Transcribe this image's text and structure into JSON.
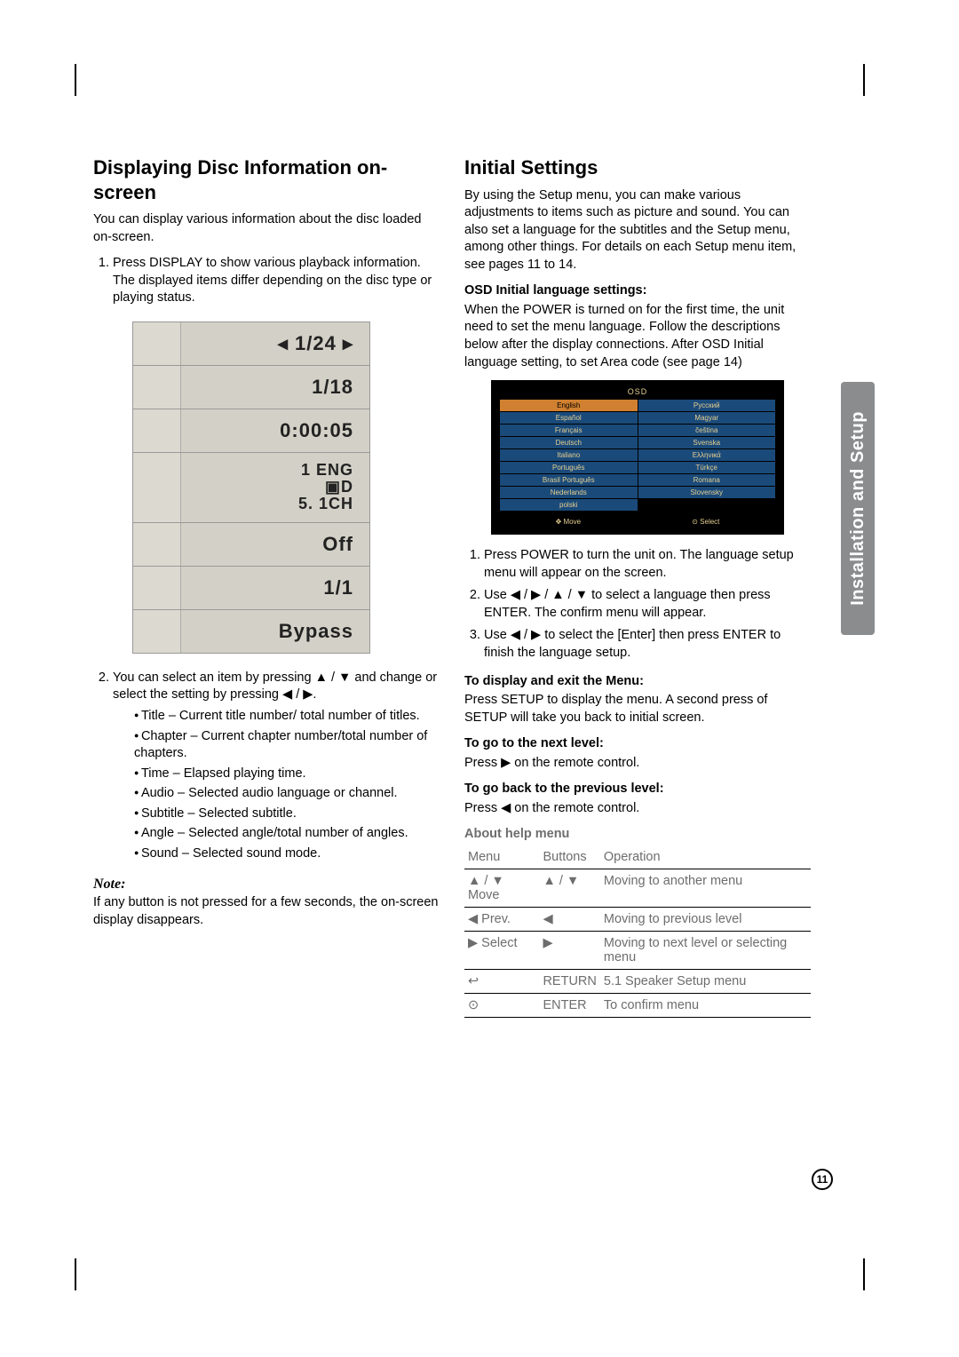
{
  "sideTab": "Installation and Setup",
  "pageNum": "11",
  "left": {
    "title": "Displaying Disc Information on-screen",
    "intro": "You can display various information about the disc loaded on-screen.",
    "step1a": "Press DISPLAY to show various playback information.",
    "step1b": "The displayed items differ depending on the disc type or playing status.",
    "osd": [
      {
        "icon": "◁ 🎬 ▷",
        "val": "◂   1/24 ▸"
      },
      {
        "icon": "▦",
        "val": "1/18"
      },
      {
        "icon": "🕐",
        "val": "0:00:05"
      },
      {
        "icon": "🎧",
        "val": "1 ENG\n▣D\n5. 1CH"
      },
      {
        "icon": "▭",
        "val": "Off"
      },
      {
        "icon": "📷",
        "val": "1/1"
      },
      {
        "icon": "◯",
        "val": "Bypass"
      }
    ],
    "step2": "You can select an item by pressing ▲ / ▼ and change or select the setting by pressing ◀ / ▶.",
    "bullets": [
      "Title – Current title number/ total number of titles.",
      "Chapter – Current chapter number/total number of chapters.",
      "Time – Elapsed playing time.",
      "Audio – Selected audio language or channel.",
      "Subtitle – Selected subtitle.",
      "Angle – Selected angle/total number of angles.",
      "Sound – Selected sound mode."
    ],
    "noteH": "Note:",
    "note": "If any button is not pressed for a few seconds, the on-screen display disappears."
  },
  "right": {
    "title": "Initial Settings",
    "intro": "By using the Setup menu, you can make various adjustments to items such as picture and sound. You can also set a language for the subtitles and the Setup menu, among other things. For details on each Setup menu item, see pages 11 to 14.",
    "osdH": "OSD Initial language settings:",
    "osdP": "When the POWER is turned on for the first time, the unit need to set the menu language. Follow the descriptions below after the display connections. After OSD Initial language setting, to set Area code (see page 14)",
    "langTitle": "OSD",
    "langs": [
      [
        "English",
        "Русский"
      ],
      [
        "Español",
        "Magyar"
      ],
      [
        "Français",
        "čeština"
      ],
      [
        "Deutsch",
        "Svenska"
      ],
      [
        "Italiano",
        "Ελληνικά"
      ],
      [
        "Português",
        "Türkçe"
      ],
      [
        "Brasil Português",
        "Romana"
      ],
      [
        "Nederlands",
        "Slovensky"
      ],
      [
        "polski",
        ""
      ]
    ],
    "langFoot1": "✥ Move",
    "langFoot2": "⊙ Select",
    "steps": [
      "Press POWER to turn the unit on. The language setup menu will appear on the screen.",
      "Use ◀ / ▶ / ▲ / ▼ to select a language then press ENTER. The confirm menu will appear.",
      "Use ◀ / ▶ to select the [Enter] then press ENTER to finish the language setup."
    ],
    "dispH": "To display and exit the Menu:",
    "dispP": "Press SETUP to display the menu. A second press of SETUP will take you back to initial screen.",
    "nextH": "To go to the next level:",
    "nextP": "Press ▶ on the remote control.",
    "prevH": "To go back to the previous level:",
    "prevP": "Press ◀ on the remote control.",
    "helpH": "About help menu",
    "tbl": {
      "h": [
        "Menu",
        "Buttons",
        "Operation"
      ],
      "r": [
        [
          "▲ / ▼ Move",
          "▲ / ▼",
          "Moving to another menu"
        ],
        [
          "◀ Prev.",
          "◀",
          "Moving to previous level"
        ],
        [
          "▶ Select",
          "▶",
          "Moving to next level or selecting menu"
        ],
        [
          "↩",
          "RETURN",
          "5.1 Speaker Setup menu"
        ],
        [
          "⊙",
          "ENTER",
          "To confirm menu"
        ]
      ]
    }
  }
}
